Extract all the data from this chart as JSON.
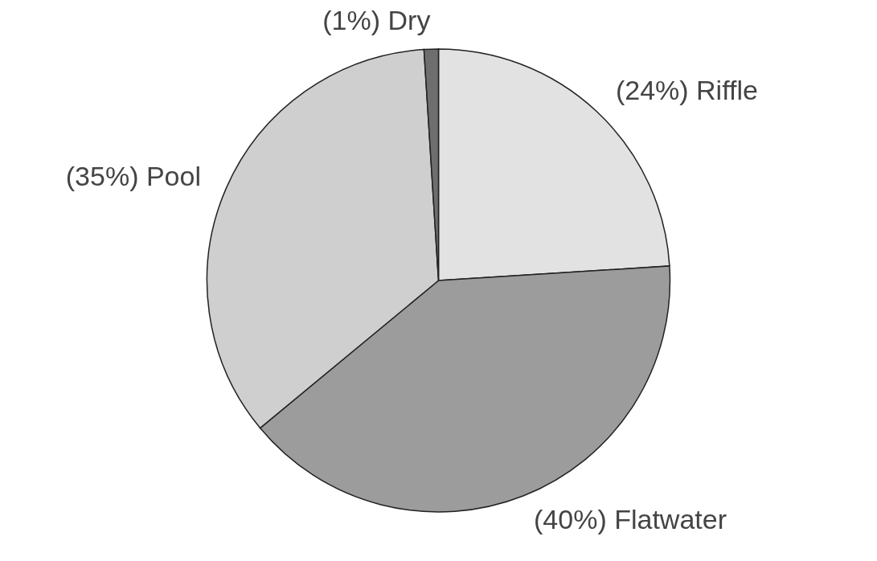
{
  "chart_data": {
    "type": "pie",
    "categories": [
      "Riffle",
      "Flatwater",
      "Pool",
      "Dry"
    ],
    "values": [
      24,
      40,
      35,
      1
    ],
    "value_labels": [
      "(24%)",
      "(40%)",
      "(35%)",
      "(1%)"
    ],
    "colors": [
      "#e2e2e2",
      "#9c9c9c",
      "#cfcfcf",
      "#6e6e6e"
    ]
  }
}
